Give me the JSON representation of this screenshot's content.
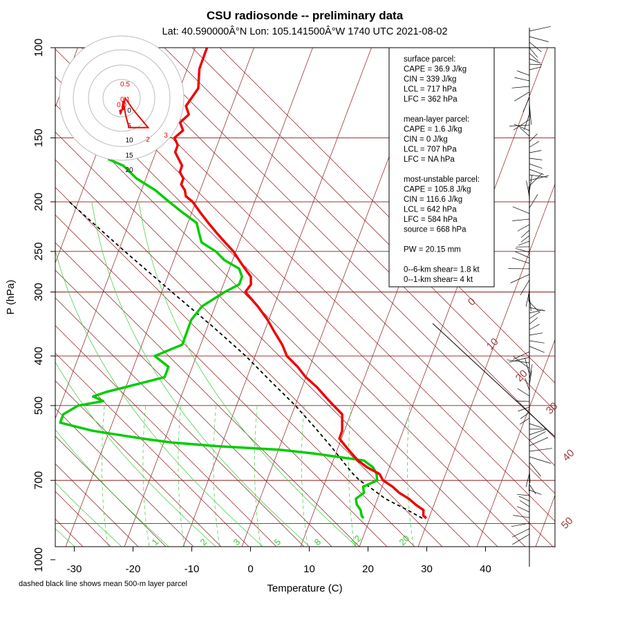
{
  "header": {
    "title": "CSU radiosonde -- preliminary data",
    "subtitle": "Lat: 40.590000Â°N Lon: 105.141500Â°W    1740 UTC  2021-08-02"
  },
  "footnote": "dashed black line shows mean 500-m layer parcel",
  "colors": {
    "temperature": "#ee0000",
    "dewpoint": "#00cc00",
    "isotherm": "#8b1a1a",
    "isobar": "#8b1a1a",
    "mixing_ratio": "#33cc33",
    "parcel": "#000000",
    "hodograph": "#ee0000"
  },
  "stats": {
    "lines": [
      "surface parcel:",
      "CAPE = 36.9 J/kg",
      "CIN = 339 J/kg",
      "LCL = 717 hPa",
      "LFC = 362 hPa",
      "",
      "mean-layer parcel:",
      "CAPE = 1.6 J/kg",
      "CIN = 0 J/kg",
      "LCL = 707 hPa",
      "LFC = NA hPa",
      "",
      "most-unstable parcel:",
      "CAPE = 105.8 J/kg",
      "CIN = 116.6 J/kg",
      "LCL = 642 hPa",
      "LFC = 584 hPa",
      "source = 668 hPa",
      "",
      "PW =  20.15 mm",
      "",
      "0--6-km shear= 1.8 kt",
      "0--1-km shear= 4 kt"
    ]
  },
  "hodograph": {
    "ring_labels": [
      "0",
      "5",
      "10",
      "15",
      "20"
    ],
    "point_labels": [
      "0.5",
      "0.1",
      "0.0",
      "2",
      "3"
    ],
    "u": [
      0.5,
      0.2,
      -0.4,
      -0.6,
      0.6,
      0.9,
      1.2,
      4.0,
      9.0,
      2.5,
      1.4,
      0.9,
      0.5
    ],
    "v": [
      -1.0,
      -3.5,
      -5.5,
      -4.2,
      -3.8,
      -1.5,
      0.0,
      -4.0,
      -10.0,
      -10.0,
      -6.0,
      -3.0,
      -1.0
    ]
  },
  "chart_data": {
    "type": "skew-t",
    "title": "CSU radiosonde -- preliminary data",
    "xlabel": "Temperature (C)",
    "ylabel": "P (hPa)",
    "xlim": [
      -35,
      50
    ],
    "ylim": [
      1050,
      100
    ],
    "x_ticks": [
      "-30",
      "-20",
      "-10",
      "0",
      "10",
      "20",
      "30",
      "40"
    ],
    "y_ticks": [
      "100",
      "150",
      "200",
      "250",
      "300",
      "400",
      "500",
      "700",
      "1000"
    ],
    "isotherm_labels": [
      "0",
      "10",
      "20",
      "30",
      "40",
      "50"
    ],
    "mixing_ratio_labels": [
      "1",
      "2",
      "3",
      "5",
      "8",
      "12",
      "20"
    ],
    "temperature": {
      "pressure": [
        830,
        820,
        800,
        780,
        760,
        740,
        720,
        700,
        680,
        660,
        640,
        620,
        600,
        580,
        560,
        540,
        520,
        500,
        480,
        460,
        440,
        420,
        400,
        380,
        360,
        340,
        320,
        300,
        290,
        280,
        270,
        260,
        250,
        240,
        230,
        220,
        210,
        200,
        195,
        190,
        185,
        180,
        175,
        170,
        165,
        160,
        155,
        150,
        145,
        140,
        135,
        130,
        125,
        120,
        115,
        110,
        105,
        100
      ],
      "values": [
        28.2,
        27.5,
        27.2,
        25.5,
        24.0,
        22.0,
        20.5,
        18.5,
        17.5,
        15.0,
        13.0,
        11.5,
        10.0,
        8.5,
        8.5,
        8.0,
        7.5,
        5.5,
        3.5,
        1.5,
        -1.0,
        -3.0,
        -5.5,
        -7.0,
        -9.0,
        -11.0,
        -13.5,
        -16.5,
        -16.0,
        -16.5,
        -18.0,
        -19.5,
        -21.0,
        -23.0,
        -25.0,
        -27.0,
        -29.0,
        -31.0,
        -32.5,
        -33.0,
        -34.0,
        -34.0,
        -35.0,
        -35.0,
        -36.0,
        -37.0,
        -37.0,
        -38.0,
        -37.0,
        -38.0,
        -37.0,
        -38.0,
        -37.5,
        -37.0,
        -37.5,
        -38.0,
        -38.0,
        -38.0
      ]
    },
    "dewpoint": {
      "pressure": [
        830,
        820,
        800,
        780,
        760,
        740,
        720,
        700,
        680,
        660,
        640,
        620,
        610,
        600,
        590,
        580,
        560,
        540,
        520,
        500,
        490,
        480,
        470,
        460,
        440,
        420,
        400,
        380,
        360,
        340,
        320,
        300,
        290,
        280,
        270,
        260,
        250,
        240,
        230,
        220,
        210,
        200,
        190,
        180,
        170,
        165
      ],
      "values": [
        17.5,
        17.0,
        16.5,
        15.5,
        15.0,
        16.0,
        15.5,
        17.5,
        17.0,
        16.0,
        14.0,
        5.0,
        -1.0,
        -12.0,
        -20.0,
        -25.0,
        -34.0,
        -40.0,
        -40.0,
        -38.0,
        -34.0,
        -36.0,
        -34.0,
        -31.0,
        -25.0,
        -25.0,
        -28.0,
        -24.0,
        -24.0,
        -24.0,
        -23.0,
        -20.0,
        -18.0,
        -18.0,
        -19.0,
        -22.0,
        -24.0,
        -27.0,
        -28.0,
        -29.0,
        -32.0,
        -35.0,
        -38.0,
        -42.0,
        -45.0,
        -48.0
      ]
    },
    "mean_layer_parcel": {
      "pressure": [
        830,
        800,
        760,
        720,
        700,
        680,
        650,
        600,
        550,
        500,
        450,
        400,
        350,
        300,
        250,
        200
      ],
      "values": [
        27.5,
        24.5,
        20.0,
        16.5,
        14.5,
        13.0,
        11.0,
        7.5,
        3.5,
        -1.0,
        -6.5,
        -12.5,
        -20.0,
        -29.0,
        -39.5,
        -52.0
      ]
    },
    "wind_barbs": "shown"
  }
}
